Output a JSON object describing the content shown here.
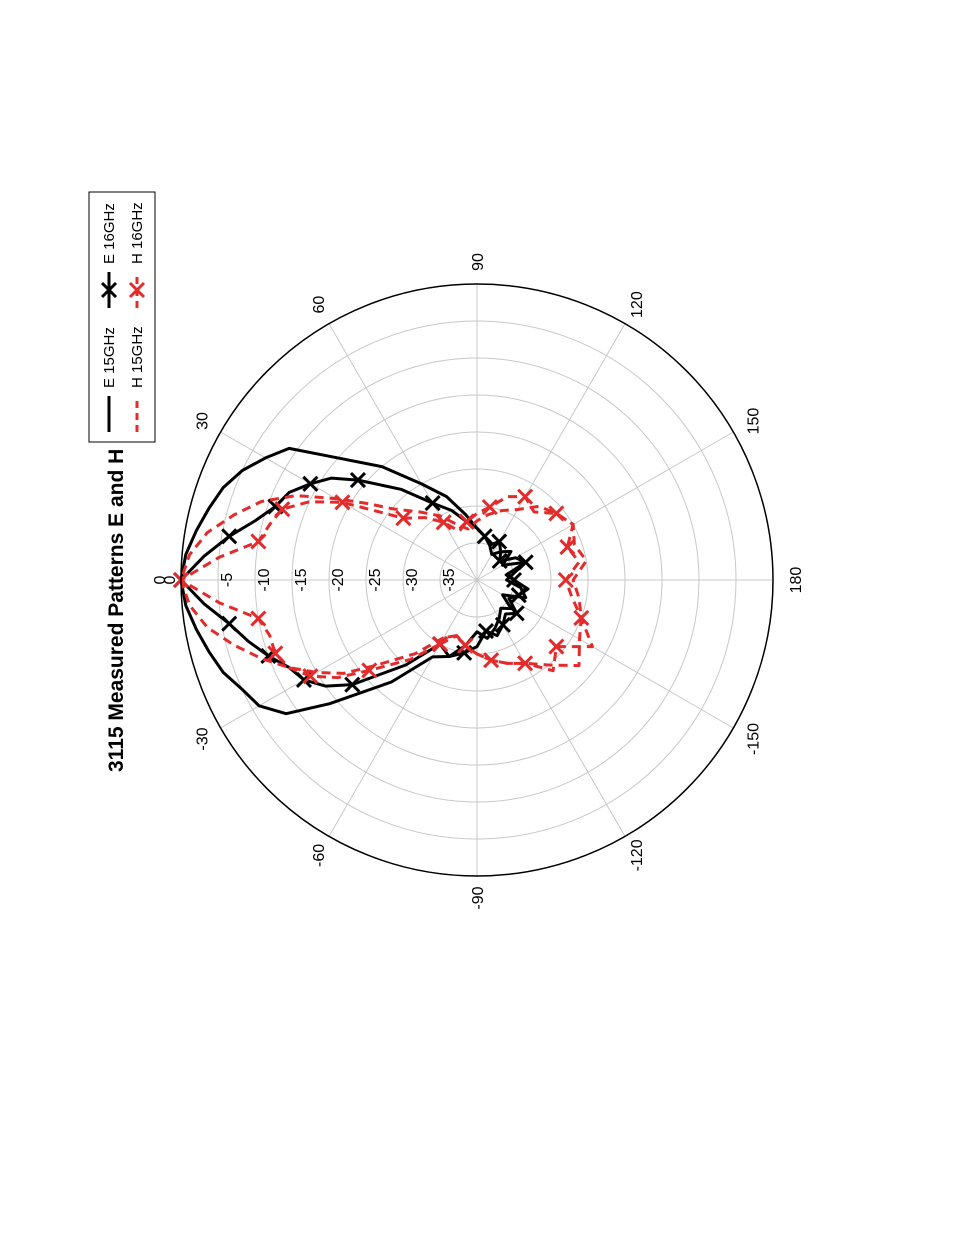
{
  "chart_data": {
    "type": "polar",
    "title": "3115 Measured Patterns E and H plane",
    "radial_axis": {
      "min": -40,
      "max": 0,
      "tick_labels": [
        "0",
        "-5",
        "-10",
        "-15",
        "-20",
        "-25",
        "-30",
        "-35"
      ],
      "tick_values": [
        0,
        -5,
        -10,
        -15,
        -20,
        -25,
        -30,
        -35
      ]
    },
    "angular_axis": {
      "tick_labels": [
        "0",
        "30",
        "60",
        "90",
        "120",
        "150",
        "180",
        "-150",
        "-120",
        "-90",
        "-60",
        "-30"
      ],
      "tick_values": [
        0,
        30,
        60,
        90,
        120,
        150,
        180,
        -150,
        -120,
        -90,
        -60,
        -30
      ]
    },
    "grid": true,
    "orientation": "page rotated 90 degrees counter-clockwise",
    "legend": {
      "position": "top-right",
      "entries": [
        "E 15GHz",
        "E 16GHz",
        "H 15GHz",
        "H 16GHz"
      ]
    },
    "series": [
      {
        "name": "E 15GHz",
        "color": "#000000",
        "style": "solid",
        "marker": "none",
        "theta": [
          -60,
          -50,
          -40,
          -35,
          -30,
          -25,
          -20,
          -15,
          -10,
          -5,
          0,
          5,
          10,
          15,
          20,
          25,
          30,
          35,
          40,
          50,
          60,
          70,
          80,
          90,
          100,
          110,
          120,
          130,
          140,
          150,
          160,
          170,
          180,
          -170,
          -160,
          -150,
          -140,
          -130,
          -120,
          -110,
          -100,
          -90,
          -80,
          -70
        ],
        "r": [
          -28,
          -22,
          -14,
          -8.5,
          -6,
          -5,
          -3.5,
          -2.5,
          -1.5,
          -0.5,
          0,
          -0.5,
          -1.5,
          -2.5,
          -3.5,
          -5,
          -7,
          -9,
          -14,
          -20,
          -25,
          -28,
          -31,
          -33,
          -34,
          -35,
          -36,
          -35,
          -34,
          -36,
          -33,
          -35,
          -36,
          -34,
          -33,
          -36,
          -34,
          -35,
          -34,
          -33,
          -32,
          -33,
          -31,
          -29
        ]
      },
      {
        "name": "E 16GHz",
        "color": "#000000",
        "style": "solid",
        "marker": "x",
        "theta": [
          -60,
          -50,
          -40,
          -35,
          -30,
          -25,
          -20,
          -15,
          -10,
          -5,
          0,
          5,
          10,
          15,
          20,
          25,
          30,
          35,
          40,
          50,
          60,
          70,
          80,
          90,
          100,
          110,
          120,
          130,
          140,
          150,
          160,
          170,
          180,
          -170,
          -160,
          -150,
          -140,
          -130,
          -120,
          -110,
          -100,
          -90,
          -80,
          -70
        ],
        "r": [
          -30,
          -25,
          -18,
          -15,
          -13,
          -12,
          -10,
          -8,
          -6,
          -3,
          0,
          -3,
          -6,
          -9,
          -11,
          -12,
          -14,
          -16,
          -19,
          -24,
          -28,
          -30,
          -32,
          -33,
          -34,
          -35,
          -34,
          -35,
          -36,
          -34,
          -33,
          -36,
          -35,
          -33,
          -34,
          -35,
          -33,
          -34,
          -33,
          -32,
          -33,
          -31,
          -30,
          -29
        ]
      },
      {
        "name": "H 15GHz",
        "color": "#e32b2b",
        "style": "dashed",
        "marker": "none",
        "theta": [
          -60,
          -50,
          -40,
          -35,
          -30,
          -25,
          -20,
          -15,
          -10,
          -5,
          0,
          5,
          10,
          15,
          20,
          25,
          30,
          35,
          40,
          50,
          60,
          70,
          80,
          90,
          100,
          110,
          120,
          130,
          140,
          150,
          160,
          170,
          180,
          -170,
          -160,
          -150,
          -140,
          -130,
          -120,
          -110,
          -100,
          -90,
          -80,
          -70
        ],
        "r": [
          -31,
          -27,
          -22,
          -18,
          -15,
          -12,
          -9,
          -6,
          -3,
          -1,
          0,
          -1,
          -3,
          -6,
          -9,
          -13,
          -18,
          -22,
          -25,
          -28,
          -30,
          -32,
          -33,
          -32,
          -31,
          -30,
          -29,
          -27,
          -26,
          -25,
          -26,
          -25,
          -27,
          -26,
          -25,
          -24,
          -22,
          -25,
          -27,
          -28,
          -29,
          -30,
          -31,
          -32
        ]
      },
      {
        "name": "H 16GHz",
        "color": "#e32b2b",
        "style": "dashed",
        "marker": "x",
        "theta": [
          -60,
          -50,
          -40,
          -35,
          -30,
          -25,
          -20,
          -15,
          -10,
          -5,
          0,
          5,
          10,
          15,
          20,
          25,
          30,
          35,
          40,
          50,
          60,
          70,
          80,
          90,
          100,
          110,
          120,
          130,
          140,
          150,
          160,
          170,
          180,
          -170,
          -160,
          -150,
          -140,
          -130,
          -120,
          -110,
          -100,
          -90,
          -80,
          -70
        ],
        "r": [
          -30,
          -26,
          -21,
          -17,
          -14,
          -12,
          -11,
          -11,
          -10,
          -5,
          0,
          -5,
          -10,
          -11,
          -12,
          -15,
          -19,
          -24,
          -27,
          -29,
          -31,
          -33,
          -32,
          -31,
          -30,
          -28,
          -27,
          -28,
          -26,
          -25,
          -27,
          -26,
          -28,
          -27,
          -25,
          -22,
          -26,
          -24,
          -27,
          -28,
          -29,
          -30,
          -31,
          -32
        ]
      }
    ]
  }
}
